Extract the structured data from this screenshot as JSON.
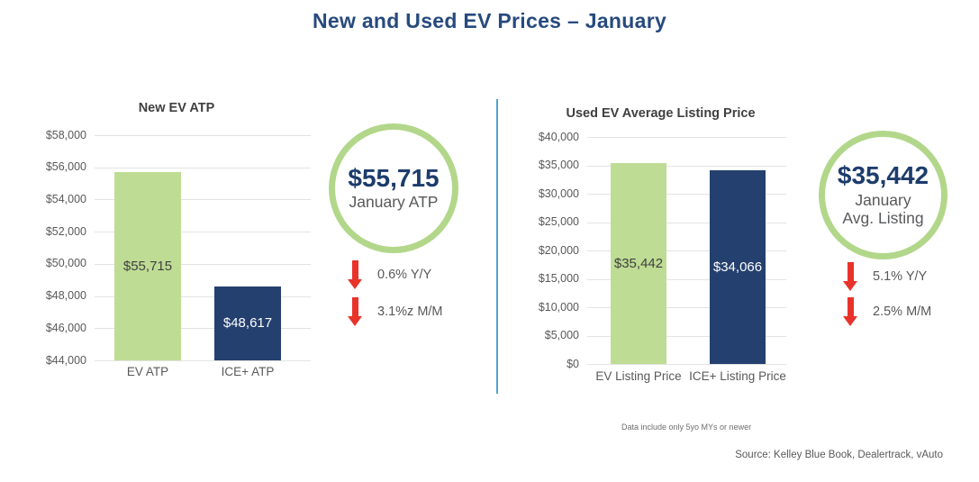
{
  "page": {
    "title": "New and Used EV Prices – January"
  },
  "colors": {
    "title_navy": "#274a7e",
    "value_navy": "#1d3c6c",
    "bar_green": "#bedc94",
    "bar_navy": "#24406e",
    "ring_green": "#b2d78a",
    "arrow_red": "#e8332a",
    "gray_text": "#58595b",
    "gridline_gray": "#e3e3e3",
    "divider_blue": "#4fa3cd"
  },
  "chart_data": [
    {
      "type": "bar",
      "title": "New EV ATP",
      "categories": [
        "EV ATP",
        "ICE+ ATP"
      ],
      "values": [
        55715,
        48617
      ],
      "bar_labels": [
        "$55,715",
        "$48,617"
      ],
      "bar_colors": [
        "#bedc94",
        "#24406e"
      ],
      "bar_label_colors": [
        "#404040",
        "#ffffff"
      ],
      "ylim": [
        44000,
        58000
      ],
      "ytick_step": 2000,
      "ytick_labels": [
        "$58,000",
        "$56,000",
        "$54,000",
        "$52,000",
        "$50,000",
        "$48,000",
        "$46,000",
        "$44,000"
      ],
      "grid": true,
      "legend": "none"
    },
    {
      "type": "bar",
      "title": "Used EV Average Listing Price",
      "categories": [
        "EV Listing Price",
        "ICE+ Listing Price"
      ],
      "values": [
        35442,
        34066
      ],
      "bar_labels": [
        "$35,442",
        "$34,066"
      ],
      "bar_colors": [
        "#bedc94",
        "#24406e"
      ],
      "bar_label_colors": [
        "#404040",
        "#ffffff"
      ],
      "ylim": [
        0,
        40000
      ],
      "ytick_step": 5000,
      "ytick_labels": [
        "$40,000",
        "$35,000",
        "$30,000",
        "$25,000",
        "$20,000",
        "$15,000",
        "$10,000",
        "$5,000",
        "$0"
      ],
      "grid": true,
      "legend": "none"
    }
  ],
  "badges": [
    {
      "value": "$55,715",
      "label_lines": [
        "January ATP"
      ],
      "stats": [
        {
          "icon": "down-arrow",
          "text": "0.6% Y/Y"
        },
        {
          "icon": "down-arrow",
          "text": "3.1%z M/M"
        }
      ]
    },
    {
      "value": "$35,442",
      "label_lines": [
        "January",
        "Avg. Listing"
      ],
      "stats": [
        {
          "icon": "down-arrow",
          "text": "5.1% Y/Y"
        },
        {
          "icon": "down-arrow",
          "text": "2.5% M/M"
        }
      ]
    }
  ],
  "footnote": "Data include only 5yo MYs or newer",
  "source": "Source: Kelley Blue Book, Dealertrack, vAuto"
}
